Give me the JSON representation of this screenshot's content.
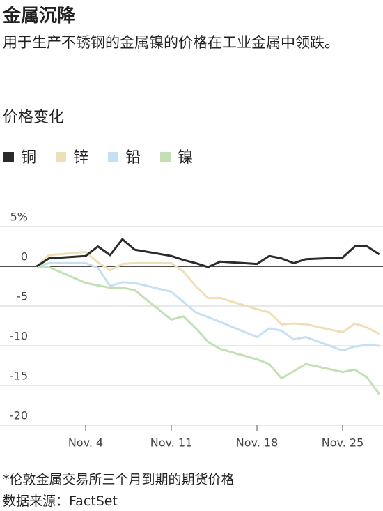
{
  "chart_data": {
    "type": "line",
    "title": "金属沉降",
    "subtitle": "用于生产不锈钢的金属镍的价格在工业金属中领跌。",
    "ylabel": "价格变化",
    "note": "*伦敦金属交易所三个月到期的期货价格",
    "source": "数据来源：FactSet",
    "x": [
      0,
      1,
      4,
      5,
      6,
      7,
      8,
      11,
      12,
      13,
      14,
      15,
      18,
      19,
      20,
      21,
      22,
      25,
      26,
      27,
      28
    ],
    "xlim": [
      -3,
      28.3
    ],
    "xticks": [
      {
        "value": 4,
        "label": "Nov. 4"
      },
      {
        "value": 11,
        "label": "Nov. 11"
      },
      {
        "value": 18,
        "label": "Nov. 18"
      },
      {
        "value": 25,
        "label": "Nov. 25"
      }
    ],
    "ylim": [
      -20,
      5
    ],
    "yticks": [
      {
        "value": 5,
        "label": "5%"
      },
      0,
      -5,
      -10,
      -15,
      -20
    ],
    "grid": true,
    "legend": "top",
    "series": [
      {
        "name": "铜",
        "color": "#2b2b2b",
        "values": [
          0,
          1.0,
          1.3,
          2.5,
          1.4,
          3.4,
          2.1,
          1.3,
          0.8,
          0.4,
          -0.1,
          0.6,
          0.3,
          1.3,
          1.0,
          0.4,
          0.9,
          1.1,
          2.5,
          2.5,
          1.5
        ]
      },
      {
        "name": "锌",
        "color": "#efdfb8",
        "values": [
          0,
          1.4,
          1.8,
          0.5,
          -0.5,
          0.3,
          0.4,
          0.4,
          -0.7,
          -2.5,
          -4.0,
          -4.0,
          -5.4,
          -5.8,
          -7.3,
          -7.2,
          -7.3,
          -8.3,
          -7.2,
          -7.7,
          -8.5
        ]
      },
      {
        "name": "铅",
        "color": "#c6e0f3",
        "values": [
          0,
          0.4,
          0.4,
          -0.2,
          -2.5,
          -2.0,
          -2.1,
          -3.2,
          -4.5,
          -5.8,
          -6.4,
          -7.0,
          -8.9,
          -7.8,
          -8.1,
          -9.2,
          -8.9,
          -10.6,
          -10.1,
          -9.9,
          -10.0
        ]
      },
      {
        "name": "镍",
        "color": "#c2e0b3",
        "values": [
          0,
          -0.1,
          -2.1,
          -2.4,
          -2.7,
          -2.7,
          -3.0,
          -6.7,
          -6.3,
          -7.8,
          -9.5,
          -10.4,
          -11.7,
          -12.3,
          -14.1,
          -13.2,
          -12.3,
          -13.3,
          -13.0,
          -14.0,
          -16.1
        ]
      }
    ]
  }
}
